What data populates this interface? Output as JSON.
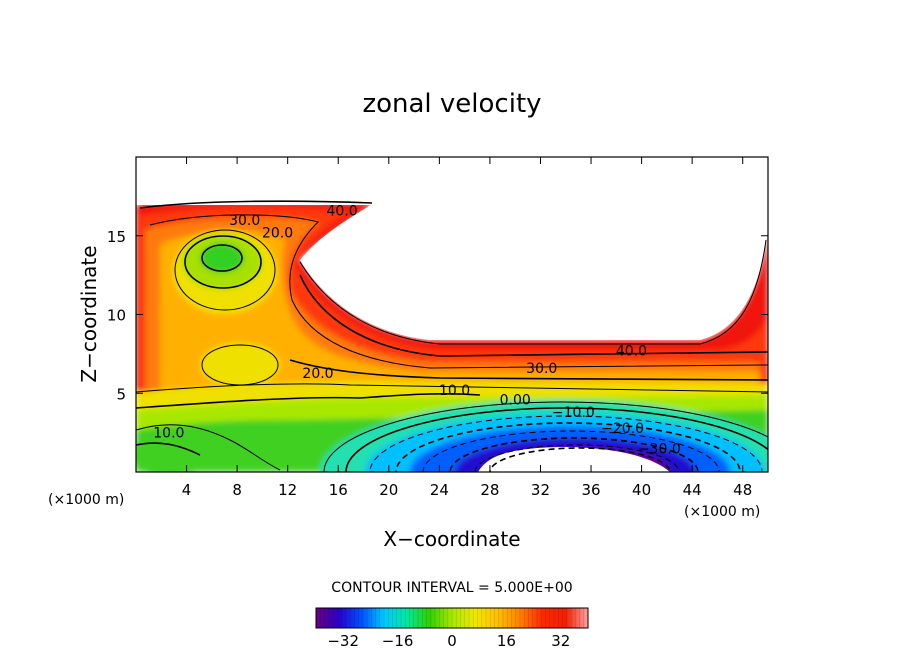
{
  "chart_data": {
    "type": "heatmap",
    "title": "zonal velocity",
    "xlabel": "X−coordinate",
    "ylabel": "Z−coordinate",
    "x_unit_left": "(×1000 m)",
    "x_unit_right": "(×1000 m)",
    "contour_interval_label": "CONTOUR INTERVAL = 5.000E+00",
    "xlim": [
      0,
      50
    ],
    "ylim": [
      0,
      20
    ],
    "x_ticks": [
      4,
      8,
      12,
      16,
      20,
      24,
      28,
      32,
      36,
      40,
      44,
      48
    ],
    "x_tick_labels": [
      "4",
      "8",
      "12",
      "16",
      "20",
      "24",
      "28",
      "32",
      "36",
      "40",
      "44",
      "48"
    ],
    "y_ticks": [
      5,
      10,
      15
    ],
    "y_tick_labels": [
      "5",
      "10",
      "15"
    ],
    "colorbar": {
      "range": [
        -40,
        40
      ],
      "ticks": [
        -32,
        -16,
        0,
        16,
        32
      ],
      "tick_labels": [
        "−32",
        "−16",
        "0",
        "16",
        "32"
      ],
      "colors": [
        "#6a0080",
        "#2a00c8",
        "#0050ff",
        "#00c8ff",
        "#00e8a0",
        "#30d000",
        "#a8e800",
        "#f0e800",
        "#ffc000",
        "#ff8000",
        "#ff2800",
        "#f02000",
        "#ffa0a0"
      ]
    },
    "contour_labels": [
      {
        "text": "30.0",
        "x": 8.6,
        "z": 16.0
      },
      {
        "text": "40.0",
        "x": 16.3,
        "z": 16.6
      },
      {
        "text": "20.0",
        "x": 11.2,
        "z": 15.2
      },
      {
        "text": "40.0",
        "x": 39.2,
        "z": 7.7
      },
      {
        "text": "30.0",
        "x": 32.1,
        "z": 6.6
      },
      {
        "text": "20.0",
        "x": 14.4,
        "z": 6.3
      },
      {
        "text": "10.0",
        "x": 25.2,
        "z": 5.2
      },
      {
        "text": "0.00",
        "x": 30.0,
        "z": 4.6
      },
      {
        "text": "−10.0",
        "x": 34.6,
        "z": 3.8
      },
      {
        "text": "−20.0",
        "x": 38.5,
        "z": 2.8
      },
      {
        "text": "−30.0",
        "x": 41.4,
        "z": 1.5
      },
      {
        "text": "10.0",
        "x": 2.6,
        "z": 2.5
      }
    ]
  }
}
